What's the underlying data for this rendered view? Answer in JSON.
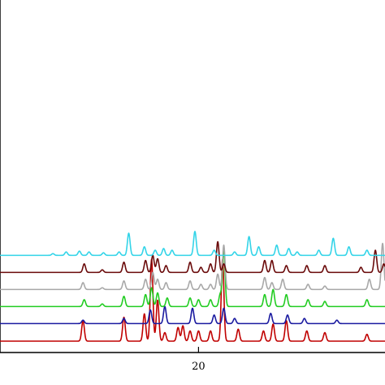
{
  "chart_data": {
    "type": "line",
    "title": "",
    "xlabel": "",
    "ylabel": "",
    "xlim": [
      3.5,
      35.5
    ],
    "x_ticks": [
      {
        "value": 20,
        "label": "20"
      }
    ],
    "grid": false,
    "legend": "none",
    "baseline_step": 0.1,
    "series": [
      {
        "color": "#ff0000",
        "stroke": "#c00000",
        "baseline": 0,
        "peaks": [
          [
            10.4,
            0.12
          ],
          [
            13.8,
            0.14
          ],
          [
            15.5,
            0.16
          ],
          [
            16.1,
            0.48
          ],
          [
            16.6,
            0.24
          ],
          [
            17.2,
            0.05
          ],
          [
            18.3,
            0.08
          ],
          [
            18.7,
            0.09
          ],
          [
            19.3,
            0.06
          ],
          [
            20.0,
            0.06
          ],
          [
            21.0,
            0.06
          ],
          [
            22.0,
            0.48
          ],
          [
            23.3,
            0.07
          ],
          [
            25.4,
            0.06
          ],
          [
            26.2,
            0.1
          ],
          [
            27.3,
            0.12
          ],
          [
            29.0,
            0.06
          ],
          [
            30.5,
            0.05
          ],
          [
            34.0,
            0.04
          ]
        ]
      },
      {
        "color": "#000080",
        "stroke": "#1a1aa0",
        "baseline": 0.003,
        "peaks": [
          [
            10.4,
            0.02
          ],
          [
            13.8,
            0.03
          ],
          [
            16.0,
            0.08
          ],
          [
            17.2,
            0.1
          ],
          [
            19.5,
            0.09
          ],
          [
            21.3,
            0.05
          ],
          [
            22.1,
            0.09
          ],
          [
            23.0,
            0.03
          ],
          [
            26.0,
            0.06
          ],
          [
            27.4,
            0.05
          ],
          [
            28.8,
            0.03
          ],
          [
            31.5,
            0.02
          ]
        ]
      },
      {
        "color": "#00cc00",
        "stroke": "#22cc22",
        "baseline": 0.003,
        "peaks": [
          [
            10.5,
            0.04
          ],
          [
            12.0,
            0.015
          ],
          [
            13.8,
            0.06
          ],
          [
            15.6,
            0.07
          ],
          [
            16.1,
            0.11
          ],
          [
            16.6,
            0.08
          ],
          [
            17.4,
            0.05
          ],
          [
            19.3,
            0.05
          ],
          [
            20.0,
            0.04
          ],
          [
            21.0,
            0.04
          ],
          [
            21.8,
            0.07
          ],
          [
            22.1,
            0.33
          ],
          [
            25.5,
            0.07
          ],
          [
            26.2,
            0.1
          ],
          [
            27.3,
            0.07
          ],
          [
            29.1,
            0.04
          ],
          [
            30.5,
            0.03
          ],
          [
            34.0,
            0.04
          ]
        ]
      },
      {
        "color": "#c0c0c0",
        "stroke": "#a8a8a8",
        "baseline": 0.003,
        "peaks": [
          [
            10.4,
            0.04
          ],
          [
            12.0,
            0.01
          ],
          [
            13.8,
            0.05
          ],
          [
            15.6,
            0.06
          ],
          [
            16.2,
            0.1
          ],
          [
            16.6,
            0.06
          ],
          [
            17.3,
            0.04
          ],
          [
            19.3,
            0.05
          ],
          [
            20.2,
            0.03
          ],
          [
            21.0,
            0.03
          ],
          [
            21.6,
            0.09
          ],
          [
            22.1,
            0.26
          ],
          [
            25.5,
            0.07
          ],
          [
            26.1,
            0.04
          ],
          [
            27.0,
            0.06
          ],
          [
            29.1,
            0.03
          ],
          [
            30.5,
            0.02
          ],
          [
            34.2,
            0.06
          ],
          [
            35.3,
            0.27
          ]
        ]
      },
      {
        "color": "#800000",
        "stroke": "#6a0a0a",
        "baseline": 0.003,
        "peaks": [
          [
            10.5,
            0.05
          ],
          [
            12.0,
            0.015
          ],
          [
            13.8,
            0.06
          ],
          [
            15.6,
            0.07
          ],
          [
            16.2,
            0.1
          ],
          [
            16.6,
            0.08
          ],
          [
            17.3,
            0.04
          ],
          [
            19.3,
            0.06
          ],
          [
            20.2,
            0.03
          ],
          [
            21.0,
            0.05
          ],
          [
            21.6,
            0.18
          ],
          [
            22.1,
            0.05
          ],
          [
            25.5,
            0.07
          ],
          [
            26.1,
            0.07
          ],
          [
            27.3,
            0.04
          ],
          [
            29.0,
            0.04
          ],
          [
            30.5,
            0.04
          ],
          [
            33.5,
            0.03
          ],
          [
            34.7,
            0.13
          ],
          [
            35.4,
            0.05
          ]
        ]
      },
      {
        "color": "#00ffff",
        "stroke": "#33d4e8",
        "baseline": 0.003,
        "peaks": [
          [
            7.9,
            0.01
          ],
          [
            9.0,
            0.02
          ],
          [
            10.1,
            0.025
          ],
          [
            10.9,
            0.02
          ],
          [
            12.1,
            0.015
          ],
          [
            13.4,
            0.02
          ],
          [
            14.2,
            0.13
          ],
          [
            15.5,
            0.05
          ],
          [
            16.4,
            0.03
          ],
          [
            17.1,
            0.04
          ],
          [
            17.8,
            0.03
          ],
          [
            19.7,
            0.14
          ],
          [
            21.3,
            0.03
          ],
          [
            23.0,
            0.02
          ],
          [
            24.2,
            0.11
          ],
          [
            25.0,
            0.05
          ],
          [
            26.5,
            0.06
          ],
          [
            27.5,
            0.04
          ],
          [
            28.2,
            0.02
          ],
          [
            30.0,
            0.03
          ],
          [
            31.2,
            0.1
          ],
          [
            32.5,
            0.05
          ],
          [
            34.0,
            0.03
          ]
        ]
      }
    ]
  }
}
